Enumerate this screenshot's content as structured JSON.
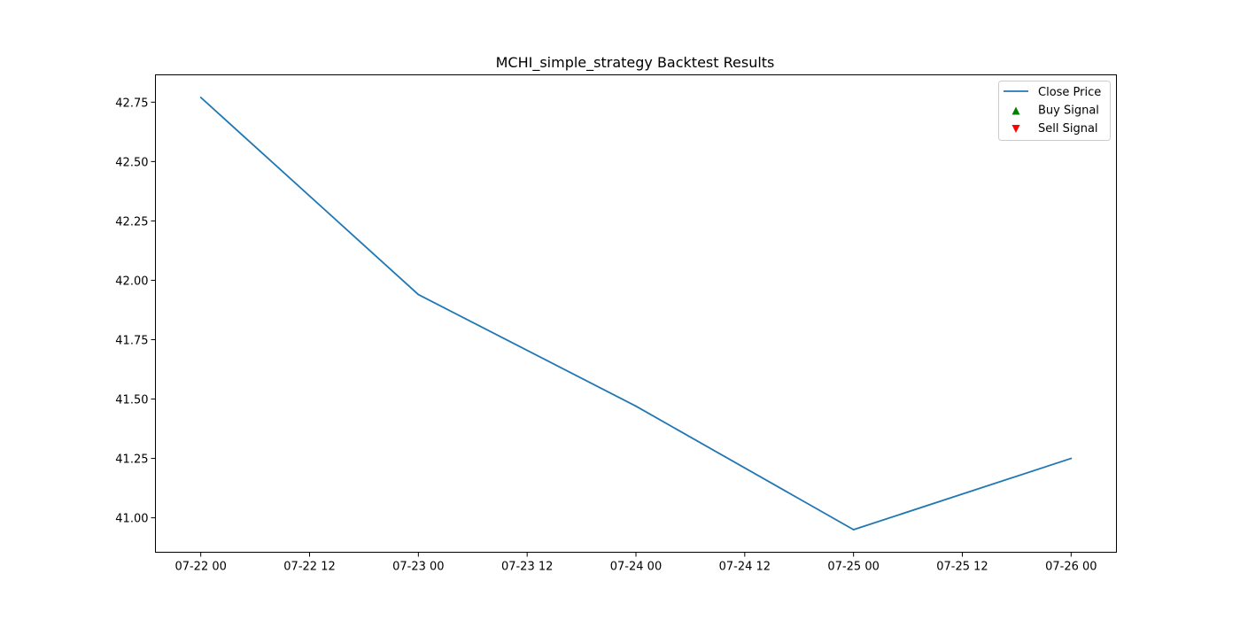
{
  "chart_data": {
    "type": "line",
    "title": "MCHI_simple_strategy Backtest Results",
    "xlabel": "",
    "ylabel": "",
    "x_ticks": [
      "07-22 00",
      "07-22 12",
      "07-23 00",
      "07-23 12",
      "07-24 00",
      "07-24 12",
      "07-25 00",
      "07-25 12",
      "07-26 00"
    ],
    "y_ticks": [
      "41.00",
      "41.25",
      "41.50",
      "41.75",
      "42.00",
      "42.25",
      "42.50",
      "42.75"
    ],
    "xlim": [
      "07-21 19",
      "07-26 05"
    ],
    "ylim": [
      40.855,
      42.865
    ],
    "grid": false,
    "legend_position": "top-right",
    "series": [
      {
        "name": "Close Price",
        "color": "#1f77b4",
        "x": [
          "07-22 00",
          "07-23 00",
          "07-24 00",
          "07-25 00",
          "07-26 00"
        ],
        "values": [
          42.77,
          41.94,
          41.47,
          40.95,
          41.25
        ]
      }
    ],
    "legend": [
      {
        "label": "Close Price",
        "marker": "line",
        "color": "#1f77b4"
      },
      {
        "label": "Buy Signal",
        "marker": "triangle-up",
        "color": "#008000"
      },
      {
        "label": "Sell Signal",
        "marker": "triangle-down",
        "color": "#ff0000"
      }
    ]
  }
}
